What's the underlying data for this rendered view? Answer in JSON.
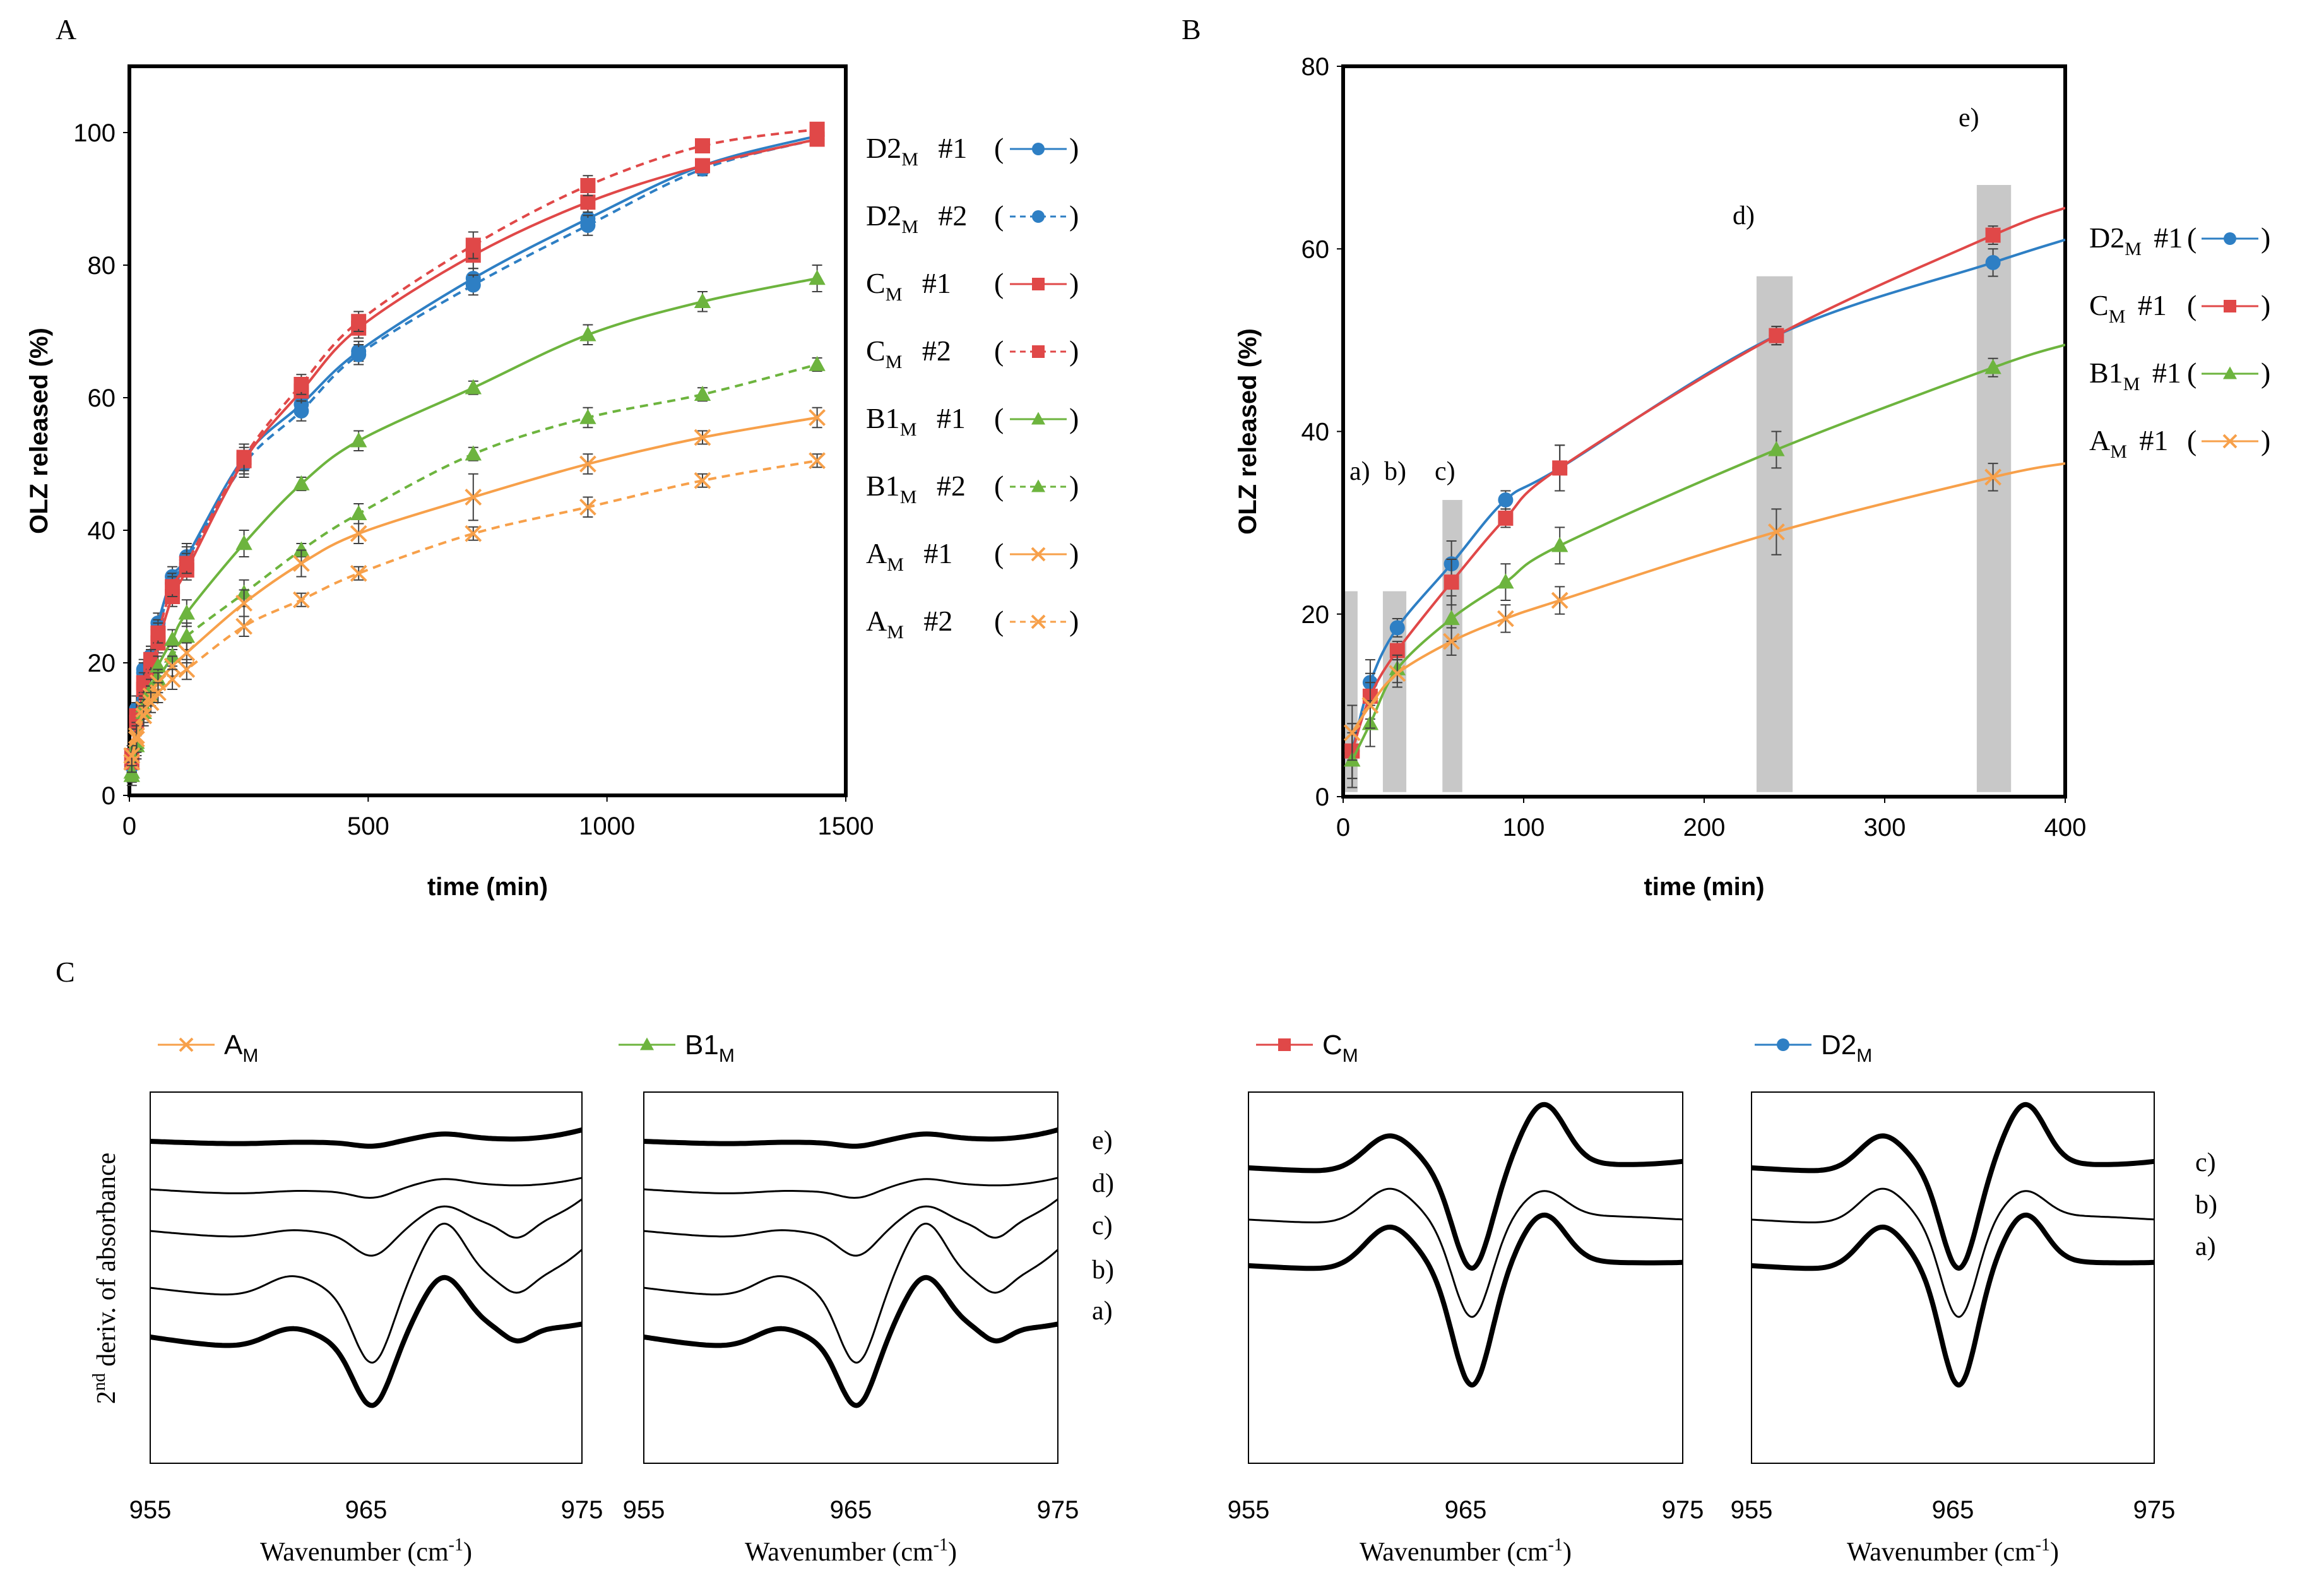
{
  "figure": {
    "colors": {
      "D2M": "#2e7fc4",
      "CM": "#e04848",
      "B1M": "#6db43e",
      "AM": "#f7a04a",
      "axis": "#000000",
      "grid_bar": "#c8c8c8",
      "err": "#404040"
    }
  },
  "chart_data": [
    {
      "type": "line",
      "panel_label": "A",
      "xlabel": "time (min)",
      "ylabel": "OLZ released (%)",
      "xlim": [
        0,
        1500
      ],
      "ylim": [
        0,
        110
      ],
      "xticks": [
        0,
        500,
        1000,
        1500
      ],
      "yticks": [
        0,
        20,
        40,
        60,
        80,
        100
      ],
      "x": [
        5,
        15,
        30,
        45,
        60,
        90,
        120,
        240,
        360,
        480,
        720,
        960,
        1200,
        1440
      ],
      "series": [
        {
          "key": "D2M",
          "name": "D2",
          "sub": "M",
          "run": "#1",
          "marker_glyph": "—●—",
          "marker": "circle",
          "dashed": false,
          "color": "#2e7fc4",
          "values": [
            5,
            13,
            19,
            21,
            26,
            33,
            36,
            51,
            59,
            67,
            78,
            87,
            95,
            99.5
          ],
          "err": [
            1.5,
            2,
            1.5,
            1.5,
            1.5,
            1.5,
            2,
            2,
            1.5,
            1.5,
            1.5,
            1.5,
            1,
            1
          ]
        },
        {
          "key": "D2M",
          "name": "D2",
          "sub": "M",
          "run": "#2",
          "marker_glyph": "--●--",
          "marker": "circle",
          "dashed": true,
          "color": "#2e7fc4",
          "values": [
            4.5,
            12,
            18.5,
            21,
            25,
            32,
            35.5,
            50,
            58,
            66.5,
            77,
            86,
            94.5,
            99
          ],
          "err": [
            1.5,
            2,
            1.5,
            1.5,
            1.5,
            1.5,
            2,
            2,
            1.5,
            1.5,
            1.5,
            1.5,
            1,
            1
          ]
        },
        {
          "key": "CM",
          "name": "C",
          "sub": "M",
          "run": "#1",
          "marker_glyph": "—■—",
          "marker": "square",
          "dashed": false,
          "color": "#e04848",
          "values": [
            5,
            11,
            16,
            19,
            23,
            30,
            34,
            50.5,
            61,
            70.5,
            81.5,
            89.5,
            95,
            99
          ],
          "err": [
            1.5,
            2,
            1.5,
            1.5,
            1.5,
            1.5,
            1.5,
            2,
            1.5,
            1.5,
            2,
            1.5,
            1,
            1
          ]
        },
        {
          "key": "CM",
          "name": "C",
          "sub": "M",
          "run": "#2",
          "marker_glyph": "--■--",
          "marker": "square",
          "dashed": true,
          "color": "#e04848",
          "values": [
            6,
            12,
            17,
            20.5,
            24.5,
            31.5,
            35,
            51,
            62,
            71.5,
            83,
            92,
            98,
            100.5
          ],
          "err": [
            1.5,
            2,
            1.5,
            1.5,
            1.5,
            1.5,
            1.5,
            2,
            1.5,
            1.5,
            2,
            1.5,
            1,
            1
          ]
        },
        {
          "key": "B1M",
          "name": "B1",
          "sub": "M",
          "run": "#1",
          "marker_glyph": "—▲—",
          "marker": "triangle",
          "dashed": false,
          "color": "#6db43e",
          "values": [
            3.5,
            8,
            13.5,
            16,
            19.5,
            23.5,
            27.5,
            38,
            47,
            53.5,
            61.5,
            69.5,
            74.5,
            78
          ],
          "err": [
            1.5,
            2,
            1.5,
            1.5,
            1.5,
            1.5,
            2,
            2,
            1,
            1.5,
            1,
            1.5,
            1.5,
            2
          ]
        },
        {
          "key": "B1M",
          "name": "B1",
          "sub": "M",
          "run": "#2",
          "marker_glyph": "--▲--",
          "marker": "triangle",
          "dashed": true,
          "color": "#6db43e",
          "values": [
            3,
            7.5,
            12.5,
            15,
            17.5,
            21,
            24,
            30.5,
            37,
            42.5,
            51.5,
            57,
            60.5,
            65
          ],
          "err": [
            1.5,
            2,
            1.5,
            1.5,
            1.5,
            1.5,
            2,
            2,
            1,
            1.5,
            1,
            1.5,
            1,
            1
          ]
        },
        {
          "key": "AM",
          "name": "A",
          "sub": "M",
          "run": "#1",
          "marker_glyph": "—x—",
          "marker": "x",
          "dashed": false,
          "color": "#f7a04a",
          "values": [
            5,
            9,
            13,
            15,
            17,
            19.5,
            21.5,
            29,
            35,
            39.5,
            45,
            50,
            54,
            57
          ],
          "err": [
            1.5,
            2,
            1.5,
            1.5,
            1.5,
            1.5,
            1.5,
            2,
            2,
            1.5,
            3.5,
            1.5,
            1,
            1.5
          ]
        },
        {
          "key": "AM",
          "name": "A",
          "sub": "M",
          "run": "#2",
          "marker_glyph": "--x--",
          "marker": "x",
          "dashed": true,
          "color": "#f7a04a",
          "values": [
            6,
            8.5,
            12,
            14,
            15.5,
            17.5,
            19,
            25.5,
            29.5,
            33.5,
            39.5,
            43.5,
            47.5,
            50.5
          ],
          "err": [
            1.5,
            2,
            1.5,
            1.5,
            1.5,
            1.5,
            1.5,
            1.5,
            1,
            1,
            1,
            1.5,
            1,
            1
          ]
        }
      ]
    },
    {
      "type": "line",
      "panel_label": "B",
      "xlabel": "time (min)",
      "ylabel": "OLZ released (%)",
      "xlim": [
        0,
        400
      ],
      "ylim": [
        0,
        80
      ],
      "xticks": [
        0,
        100,
        200,
        300,
        400
      ],
      "yticks": [
        0,
        20,
        40,
        60,
        80
      ],
      "x": [
        5,
        15,
        30,
        60,
        90,
        120,
        240,
        360
      ],
      "sampling_windows": [
        {
          "label": "a)",
          "x_from": 0,
          "x_to": 8,
          "top": 22.5
        },
        {
          "label": "b)",
          "x_from": 22,
          "x_to": 35,
          "top": 22.5
        },
        {
          "label": "c)",
          "x_from": 55,
          "x_to": 66,
          "top": 32.5
        },
        {
          "label": "d)",
          "x_from": 229,
          "x_to": 249,
          "top": 57
        },
        {
          "label": "e)",
          "x_from": 351,
          "x_to": 370,
          "top": 67
        }
      ],
      "series": [
        {
          "key": "D2M",
          "name": "D2",
          "sub": "M",
          "run": "#1",
          "marker_glyph": "—●—",
          "marker": "circle",
          "color": "#2e7fc4",
          "values": [
            5,
            12.5,
            18.5,
            25.5,
            32.5,
            36,
            50.5,
            58.5
          ],
          "err": [
            3,
            2.5,
            1,
            2.5,
            1,
            2.5,
            1,
            1.5
          ],
          "tail": 61
        },
        {
          "key": "CM",
          "name": "C",
          "sub": "M",
          "run": "#1",
          "marker_glyph": "—■—",
          "marker": "square",
          "color": "#e04848",
          "values": [
            5,
            11,
            16,
            23.5,
            30.5,
            36,
            50.5,
            61.5
          ],
          "err": [
            3,
            2.5,
            1,
            2.5,
            1,
            2.5,
            1,
            1
          ],
          "tail": 64.5
        },
        {
          "key": "B1M",
          "name": "B1",
          "sub": "M",
          "run": "#1",
          "marker_glyph": "—▲—",
          "marker": "triangle",
          "color": "#6db43e",
          "values": [
            4,
            8,
            14,
            19.5,
            23.5,
            27.5,
            38,
            47
          ],
          "err": [
            3,
            2.5,
            1.5,
            2.5,
            2,
            2,
            2,
            1
          ],
          "tail": 49.5
        },
        {
          "key": "AM",
          "name": "A",
          "sub": "M",
          "run": "#1",
          "marker_glyph": "—x—",
          "marker": "x",
          "color": "#f7a04a",
          "values": [
            7,
            10,
            13.5,
            17,
            19.5,
            21.5,
            29,
            35
          ],
          "err": [
            3,
            2.5,
            1.5,
            1.5,
            1.5,
            1.5,
            2.5,
            1.5
          ],
          "tail": 36.5
        }
      ]
    },
    {
      "type": "line",
      "panel_label": "C",
      "xlabel": "Wavenumber (cm",
      "xlabel_sup": "-1",
      "xlabel_tail": ")",
      "ylabel": "2",
      "ylabel_sup": "nd",
      "ylabel_tail": " deriv. of absorbance",
      "xlim": [
        955,
        975
      ],
      "xticks": [
        955,
        965,
        975
      ],
      "subplots": [
        {
          "key": "AM",
          "name": "A",
          "sub": "M",
          "marker": "x",
          "color": "#f7a04a",
          "traces": [
            "e)",
            "d)",
            "c)",
            "b)",
            "a)"
          ]
        },
        {
          "key": "B1M",
          "name": "B1",
          "sub": "M",
          "marker": "triangle",
          "color": "#6db43e",
          "traces": [
            "e)",
            "d)",
            "c)",
            "b)",
            "a)"
          ]
        },
        {
          "key": "CM",
          "name": "C",
          "sub": "M",
          "marker": "square",
          "color": "#e04848",
          "traces": [
            "c)",
            "b)",
            "a)"
          ]
        },
        {
          "key": "D2M",
          "name": "D2",
          "sub": "M",
          "marker": "circle",
          "color": "#2e7fc4",
          "traces": [
            "c)",
            "b)",
            "a)"
          ]
        }
      ]
    }
  ]
}
